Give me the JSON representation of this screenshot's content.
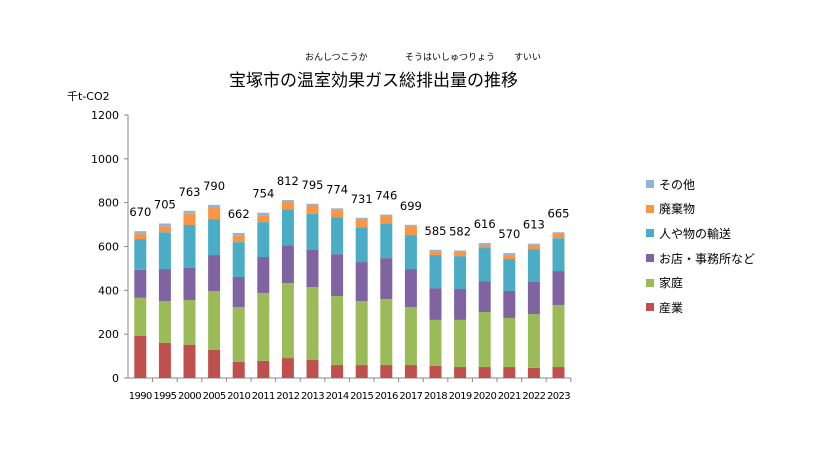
{
  "chart_data": {
    "type": "bar",
    "stacked": true,
    "title": "宝塚市の温室効果ガス総排出量の推移",
    "title_ruby": [
      "おんしつこうか",
      "そうはいしゅつりょう",
      "すいい"
    ],
    "ylabel": "千t-CO2",
    "ylim": [
      0,
      1200
    ],
    "yticks": [
      0,
      200,
      400,
      600,
      800,
      1000,
      1200
    ],
    "grid": false,
    "legend_position": "right",
    "categories": [
      "1990",
      "1995",
      "2000",
      "2005",
      "2010",
      "2011",
      "2012",
      "2013",
      "2014",
      "2015",
      "2016",
      "2017",
      "2018",
      "2019",
      "2020",
      "2021",
      "2022",
      "2023"
    ],
    "totals": [
      670,
      705,
      763,
      790,
      662,
      754,
      812,
      795,
      774,
      731,
      746,
      699,
      585,
      582,
      616,
      570,
      613,
      665
    ],
    "series": [
      {
        "name": "産業",
        "color": "#c0504d",
        "values": [
          193,
          160,
          152,
          128,
          73,
          78,
          91,
          82,
          59,
          59,
          59,
          59,
          55,
          50,
          50,
          50,
          46,
          50
        ]
      },
      {
        "name": "家庭",
        "color": "#9bbb59",
        "values": [
          173,
          191,
          204,
          269,
          251,
          310,
          342,
          333,
          315,
          292,
          301,
          265,
          210,
          215,
          251,
          224,
          246,
          283
        ]
      },
      {
        "name": "お店・事務所など",
        "color": "#8064a2",
        "values": [
          128,
          146,
          146,
          164,
          137,
          164,
          173,
          169,
          191,
          178,
          187,
          173,
          145,
          141,
          141,
          123,
          146,
          155
        ]
      },
      {
        "name": "人や物の輸送",
        "color": "#4bacc6",
        "values": [
          140,
          168,
          196,
          164,
          159,
          159,
          164,
          165,
          169,
          159,
          159,
          155,
          151,
          150,
          151,
          146,
          150,
          150
        ]
      },
      {
        "name": "廃棄物",
        "color": "#f79646",
        "values": [
          26,
          27,
          51,
          53,
          31,
          31,
          36,
          38,
          32,
          37,
          33,
          41,
          18,
          23,
          14,
          18,
          19,
          19
        ]
      },
      {
        "name": "その他",
        "color": "#95b3d7",
        "values": [
          10,
          13,
          14,
          12,
          11,
          12,
          6,
          8,
          8,
          6,
          7,
          6,
          6,
          3,
          9,
          9,
          6,
          8
        ]
      }
    ]
  }
}
